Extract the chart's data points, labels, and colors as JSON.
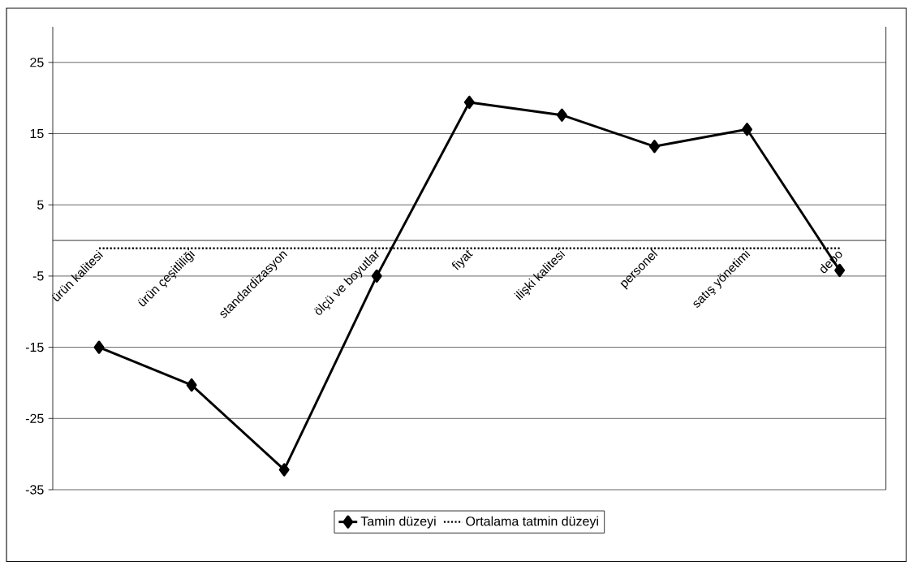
{
  "chart_data": {
    "type": "line",
    "categories": [
      "ürün kalitesi",
      "ürün çeşitliliği",
      "standardizasyon",
      "ölçü ve boyutlar",
      "fiyat",
      "ilişki kalitesi",
      "personel",
      "satış yönetimi",
      "depo"
    ],
    "series": [
      {
        "name": "Tamin düzeyi",
        "color": "#000000",
        "marker": "diamond",
        "line_style": "solid",
        "values": [
          -15.0,
          -20.3,
          -32.2,
          -5.0,
          19.4,
          17.6,
          13.2,
          15.6,
          -4.2
        ]
      },
      {
        "name": "Ortalama tatmin düzeyi",
        "color": "#000000",
        "marker": "none",
        "line_style": "dotted",
        "values": [
          -1.1,
          -1.1,
          -1.1,
          -1.1,
          -1.1,
          -1.1,
          -1.1,
          -1.1,
          -1.1
        ]
      }
    ],
    "ylim": [
      -35,
      30
    ],
    "yticks": [
      -35,
      -25,
      -15,
      -5,
      5,
      15,
      25
    ],
    "grid": "y",
    "legend": "bottom"
  }
}
